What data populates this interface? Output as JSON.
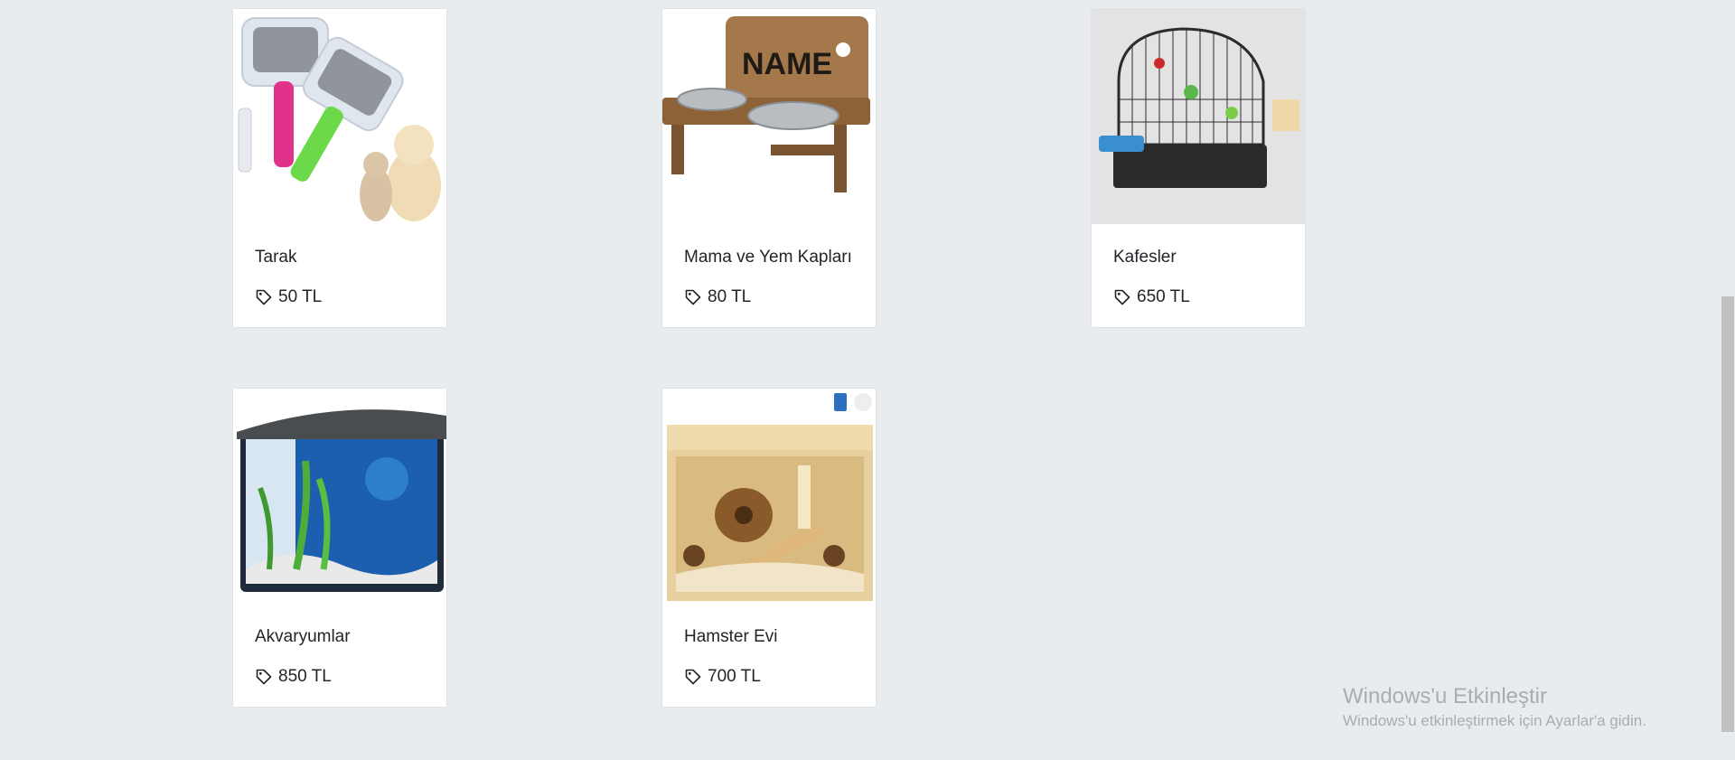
{
  "products": [
    {
      "name": "Tarak",
      "price": "50 TL"
    },
    {
      "name": "Mama ve Yem Kapları",
      "price": "80 TL"
    },
    {
      "name": "Kafesler",
      "price": "650 TL"
    },
    {
      "name": "Akvaryumlar",
      "price": "850 TL"
    },
    {
      "name": "Hamster Evi",
      "price": "700 TL"
    }
  ],
  "bowl_stand_label": "NAME",
  "watermark": {
    "title": "Windows'u Etkinleştir",
    "subtitle": "Windows'u etkinleştirmek için Ayarlar'a gidin."
  }
}
